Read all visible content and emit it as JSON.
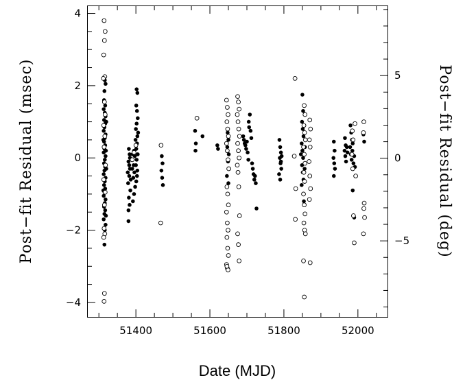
{
  "chart_data": {
    "type": "scatter",
    "title": "",
    "xlabel": "Date (MJD)",
    "ylabel": "Post−fit Residual (msec)",
    "y2label": "Post−fit Residual (deg)",
    "xlim": [
      51270,
      52080
    ],
    "ylim": [
      -4.4,
      4.2
    ],
    "y2lim": [
      -9.6,
      9.2
    ],
    "x_major_ticks": [
      51400,
      51600,
      51800,
      52000
    ],
    "x_tick_labels": [
      "51400",
      "51600",
      "51800",
      "52000"
    ],
    "y_major_ticks": [
      -4,
      -2,
      0,
      2,
      4
    ],
    "y_tick_labels": [
      "−4",
      "−2",
      "0",
      "2",
      "4"
    ],
    "y2_major_ticks": [
      -5,
      0,
      5
    ],
    "y2_tick_labels": [
      "−5",
      "0",
      "5"
    ],
    "grid": false,
    "series": [
      {
        "marker": "filled-circle",
        "points": [
          [
            51316,
            2.15
          ],
          [
            51318,
            2.05
          ],
          [
            51315,
            1.85
          ],
          [
            51314,
            1.6
          ],
          [
            51317,
            1.45
          ],
          [
            51313,
            1.35
          ],
          [
            51316,
            1.25
          ],
          [
            51318,
            1.15
          ],
          [
            51314,
            1.05
          ],
          [
            51317,
            0.95
          ],
          [
            51315,
            0.85
          ],
          [
            51313,
            0.75
          ],
          [
            51318,
            0.65
          ],
          [
            51316,
            0.55
          ],
          [
            51314,
            0.45
          ],
          [
            51317,
            0.35
          ],
          [
            51315,
            0.25
          ],
          [
            51313,
            0.15
          ],
          [
            51318,
            0.05
          ],
          [
            51316,
            -0.05
          ],
          [
            51314,
            -0.15
          ],
          [
            51317,
            -0.25
          ],
          [
            51315,
            -0.35
          ],
          [
            51313,
            -0.45
          ],
          [
            51318,
            -0.55
          ],
          [
            51316,
            -0.65
          ],
          [
            51314,
            -0.75
          ],
          [
            51317,
            -0.85
          ],
          [
            51315,
            -0.95
          ],
          [
            51313,
            -1.05
          ],
          [
            51318,
            -1.15
          ],
          [
            51316,
            -1.25
          ],
          [
            51314,
            -1.35
          ],
          [
            51317,
            -1.45
          ],
          [
            51315,
            -1.55
          ],
          [
            51313,
            -1.7
          ],
          [
            51318,
            -1.85
          ],
          [
            51316,
            -2.0
          ],
          [
            51315,
            -2.4
          ],
          [
            51319,
            0.2
          ],
          [
            51320,
            -0.3
          ],
          [
            51312,
            0.5
          ],
          [
            51312,
            -0.9
          ],
          [
            51320,
            1.0
          ],
          [
            51319,
            -1.6
          ],
          [
            51381,
            0.25
          ],
          [
            51383,
            0.1
          ],
          [
            51380,
            -0.1
          ],
          [
            51384,
            -0.3
          ],
          [
            51382,
            -0.5
          ],
          [
            51379,
            -0.7
          ],
          [
            51385,
            -0.9
          ],
          [
            51381,
            -1.1
          ],
          [
            51383,
            -1.3
          ],
          [
            51380,
            -1.45
          ],
          [
            51384,
            0.0
          ],
          [
            51382,
            -0.2
          ],
          [
            51380,
            -1.75
          ],
          [
            51386,
            -0.6
          ],
          [
            51378,
            -0.4
          ],
          [
            51395,
            0.2
          ],
          [
            51397,
            0.05
          ],
          [
            51394,
            -0.2
          ],
          [
            51396,
            -0.4
          ],
          [
            51393,
            -0.55
          ],
          [
            51398,
            -0.8
          ],
          [
            51395,
            -1.0
          ],
          [
            51392,
            -1.2
          ],
          [
            51390,
            -0.3
          ],
          [
            51391,
            0.1
          ],
          [
            51402,
            1.9
          ],
          [
            51404,
            1.8
          ],
          [
            51401,
            1.45
          ],
          [
            51403,
            1.3
          ],
          [
            51405,
            1.1
          ],
          [
            51402,
            0.95
          ],
          [
            51400,
            0.8
          ],
          [
            51404,
            0.6
          ],
          [
            51403,
            0.4
          ],
          [
            51401,
            0.25
          ],
          [
            51405,
            0.1
          ],
          [
            51402,
            -0.05
          ],
          [
            51400,
            -0.2
          ],
          [
            51404,
            -0.35
          ],
          [
            51403,
            -0.5
          ],
          [
            51401,
            -0.65
          ],
          [
            51406,
            0.7
          ],
          [
            51399,
            0.5
          ],
          [
            51470,
            0.05
          ],
          [
            51472,
            -0.15
          ],
          [
            51469,
            -0.35
          ],
          [
            51471,
            -0.55
          ],
          [
            51473,
            -0.75
          ],
          [
            51560,
            0.75
          ],
          [
            51562,
            0.4
          ],
          [
            51561,
            0.2
          ],
          [
            51580,
            0.6
          ],
          [
            51620,
            0.35
          ],
          [
            51622,
            0.25
          ],
          [
            51648,
            0.7
          ],
          [
            51650,
            0.5
          ],
          [
            51647,
            0.3
          ],
          [
            51651,
            0.1
          ],
          [
            51649,
            -0.1
          ],
          [
            51652,
            -0.3
          ],
          [
            51646,
            -0.5
          ],
          [
            51650,
            -0.7
          ],
          [
            51690,
            0.6
          ],
          [
            51692,
            0.5
          ],
          [
            51694,
            0.4
          ],
          [
            51696,
            0.35
          ],
          [
            51698,
            0.25
          ],
          [
            51700,
            0.45
          ],
          [
            51702,
            0.15
          ],
          [
            51704,
            -0.05
          ],
          [
            51706,
            0.85
          ],
          [
            51708,
            1.2
          ],
          [
            51710,
            0.75
          ],
          [
            51712,
            0.55
          ],
          [
            51714,
            -0.15
          ],
          [
            51716,
            -0.3
          ],
          [
            51718,
            -0.45
          ],
          [
            51720,
            -0.6
          ],
          [
            51722,
            -0.5
          ],
          [
            51724,
            -0.7
          ],
          [
            51726,
            -1.4
          ],
          [
            51705,
            1.0
          ],
          [
            51788,
            0.5
          ],
          [
            51790,
            0.3
          ],
          [
            51792,
            0.15
          ],
          [
            51789,
            0.0
          ],
          [
            51791,
            -0.15
          ],
          [
            51793,
            -0.3
          ],
          [
            51787,
            -0.45
          ],
          [
            51790,
            -0.6
          ],
          [
            51792,
            -0.1
          ],
          [
            51794,
            0.05
          ],
          [
            51850,
            1.75
          ],
          [
            51852,
            1.3
          ],
          [
            51849,
            1.0
          ],
          [
            51851,
            0.8
          ],
          [
            51853,
            0.6
          ],
          [
            51848,
            0.4
          ],
          [
            51850,
            0.2
          ],
          [
            51852,
            0.0
          ],
          [
            51849,
            -0.2
          ],
          [
            51851,
            -0.4
          ],
          [
            51853,
            -0.6
          ],
          [
            51848,
            -0.75
          ],
          [
            51855,
            0.9
          ],
          [
            51857,
            0.3
          ],
          [
            51846,
            0.1
          ],
          [
            51854,
            -1.2
          ],
          [
            51856,
            -0.3
          ],
          [
            51935,
            0.45
          ],
          [
            51937,
            0.2
          ],
          [
            51934,
            0.0
          ],
          [
            51936,
            -0.15
          ],
          [
            51938,
            -0.3
          ],
          [
            51935,
            -0.5
          ],
          [
            51965,
            0.55
          ],
          [
            51967,
            0.35
          ],
          [
            51964,
            0.2
          ],
          [
            51966,
            0.05
          ],
          [
            51968,
            -0.1
          ],
          [
            51970,
            0.3
          ],
          [
            51972,
            0.15
          ],
          [
            51980,
            0.9
          ],
          [
            51982,
            0.7
          ],
          [
            51984,
            0.5
          ],
          [
            51979,
            0.3
          ],
          [
            51981,
            0.1
          ],
          [
            51983,
            -0.05
          ],
          [
            51985,
            0.2
          ],
          [
            51986,
            0.4
          ],
          [
            51988,
            -0.15
          ],
          [
            51990,
            0.05
          ],
          [
            51992,
            -0.25
          ],
          [
            51986,
            -0.9
          ],
          [
            51990,
            -1.65
          ],
          [
            52015,
            0.65
          ],
          [
            52017,
            0.45
          ]
        ]
      },
      {
        "marker": "open-circle",
        "points": [
          [
            51314,
            3.8
          ],
          [
            51317,
            3.5
          ],
          [
            51315,
            3.25
          ],
          [
            51313,
            2.85
          ],
          [
            51316,
            2.25
          ],
          [
            51312,
            2.2
          ],
          [
            51315,
            1.55
          ],
          [
            51317,
            1.2
          ],
          [
            51313,
            0.9
          ],
          [
            51316,
            0.6
          ],
          [
            51314,
            0.3
          ],
          [
            51318,
            -0.2
          ],
          [
            51313,
            -0.6
          ],
          [
            51317,
            -0.95
          ],
          [
            51315,
            -1.3
          ],
          [
            51314,
            -1.95
          ],
          [
            51316,
            -2.1
          ],
          [
            51313,
            -2.2
          ],
          [
            51315,
            -3.75
          ],
          [
            51314,
            -3.97
          ],
          [
            51390,
            -0.05
          ],
          [
            51395,
            0.15
          ],
          [
            51400,
            0.35
          ],
          [
            51468,
            0.35
          ],
          [
            51467,
            -1.8
          ],
          [
            51565,
            1.1
          ],
          [
            51645,
            1.6
          ],
          [
            51647,
            1.4
          ],
          [
            51649,
            1.2
          ],
          [
            51646,
            1.0
          ],
          [
            51648,
            0.8
          ],
          [
            51650,
            0.6
          ],
          [
            51645,
            0.4
          ],
          [
            51647,
            0.2
          ],
          [
            51649,
            -0.05
          ],
          [
            51651,
            -0.3
          ],
          [
            51646,
            -0.8
          ],
          [
            51648,
            -1.0
          ],
          [
            51650,
            -1.3
          ],
          [
            51645,
            -1.5
          ],
          [
            51647,
            -1.8
          ],
          [
            51649,
            -2.0
          ],
          [
            51646,
            -2.2
          ],
          [
            51648,
            -2.5
          ],
          [
            51650,
            -2.7
          ],
          [
            51645,
            -2.95
          ],
          [
            51647,
            -3.05
          ],
          [
            51649,
            -3.1
          ],
          [
            51646,
            -3.0
          ],
          [
            51675,
            1.7
          ],
          [
            51677,
            1.55
          ],
          [
            51679,
            1.35
          ],
          [
            51674,
            1.2
          ],
          [
            51676,
            1.0
          ],
          [
            51678,
            0.8
          ],
          [
            51680,
            0.6
          ],
          [
            51675,
            0.4
          ],
          [
            51677,
            0.2
          ],
          [
            51679,
            0.0
          ],
          [
            51674,
            -0.2
          ],
          [
            51676,
            -0.4
          ],
          [
            51678,
            -0.8
          ],
          [
            51680,
            -1.6
          ],
          [
            51675,
            -2.1
          ],
          [
            51677,
            -2.4
          ],
          [
            51679,
            -2.85
          ],
          [
            51830,
            2.2
          ],
          [
            51828,
            0.05
          ],
          [
            51832,
            -0.85
          ],
          [
            51831,
            -1.7
          ],
          [
            51855,
            1.45
          ],
          [
            51857,
            1.2
          ],
          [
            51854,
            0.9
          ],
          [
            51856,
            0.7
          ],
          [
            51858,
            0.5
          ],
          [
            51853,
            0.3
          ],
          [
            51855,
            0.1
          ],
          [
            51857,
            -0.15
          ],
          [
            51854,
            -0.4
          ],
          [
            51856,
            -0.65
          ],
          [
            51853,
            -1.0
          ],
          [
            51855,
            -1.3
          ],
          [
            51857,
            -1.55
          ],
          [
            51854,
            -1.8
          ],
          [
            51856,
            -2.0
          ],
          [
            51858,
            -2.1
          ],
          [
            51853,
            -2.85
          ],
          [
            51855,
            -3.85
          ],
          [
            51870,
            1.05
          ],
          [
            51872,
            0.8
          ],
          [
            51869,
            0.5
          ],
          [
            51871,
            0.3
          ],
          [
            51868,
            -0.1
          ],
          [
            51870,
            -0.5
          ],
          [
            51872,
            -0.85
          ],
          [
            51869,
            -1.15
          ],
          [
            51871,
            -2.9
          ],
          [
            51985,
            0.75
          ],
          [
            51987,
            0.5
          ],
          [
            51984,
            0.1
          ],
          [
            51986,
            -0.3
          ],
          [
            51988,
            -1.6
          ],
          [
            51990,
            -2.35
          ],
          [
            51992,
            0.95
          ],
          [
            51994,
            -0.5
          ],
          [
            52016,
            1.0
          ],
          [
            52015,
            0.7
          ],
          [
            52017,
            -1.25
          ],
          [
            52016,
            -1.4
          ],
          [
            52018,
            -1.65
          ],
          [
            52015,
            -2.1
          ]
        ]
      }
    ]
  }
}
